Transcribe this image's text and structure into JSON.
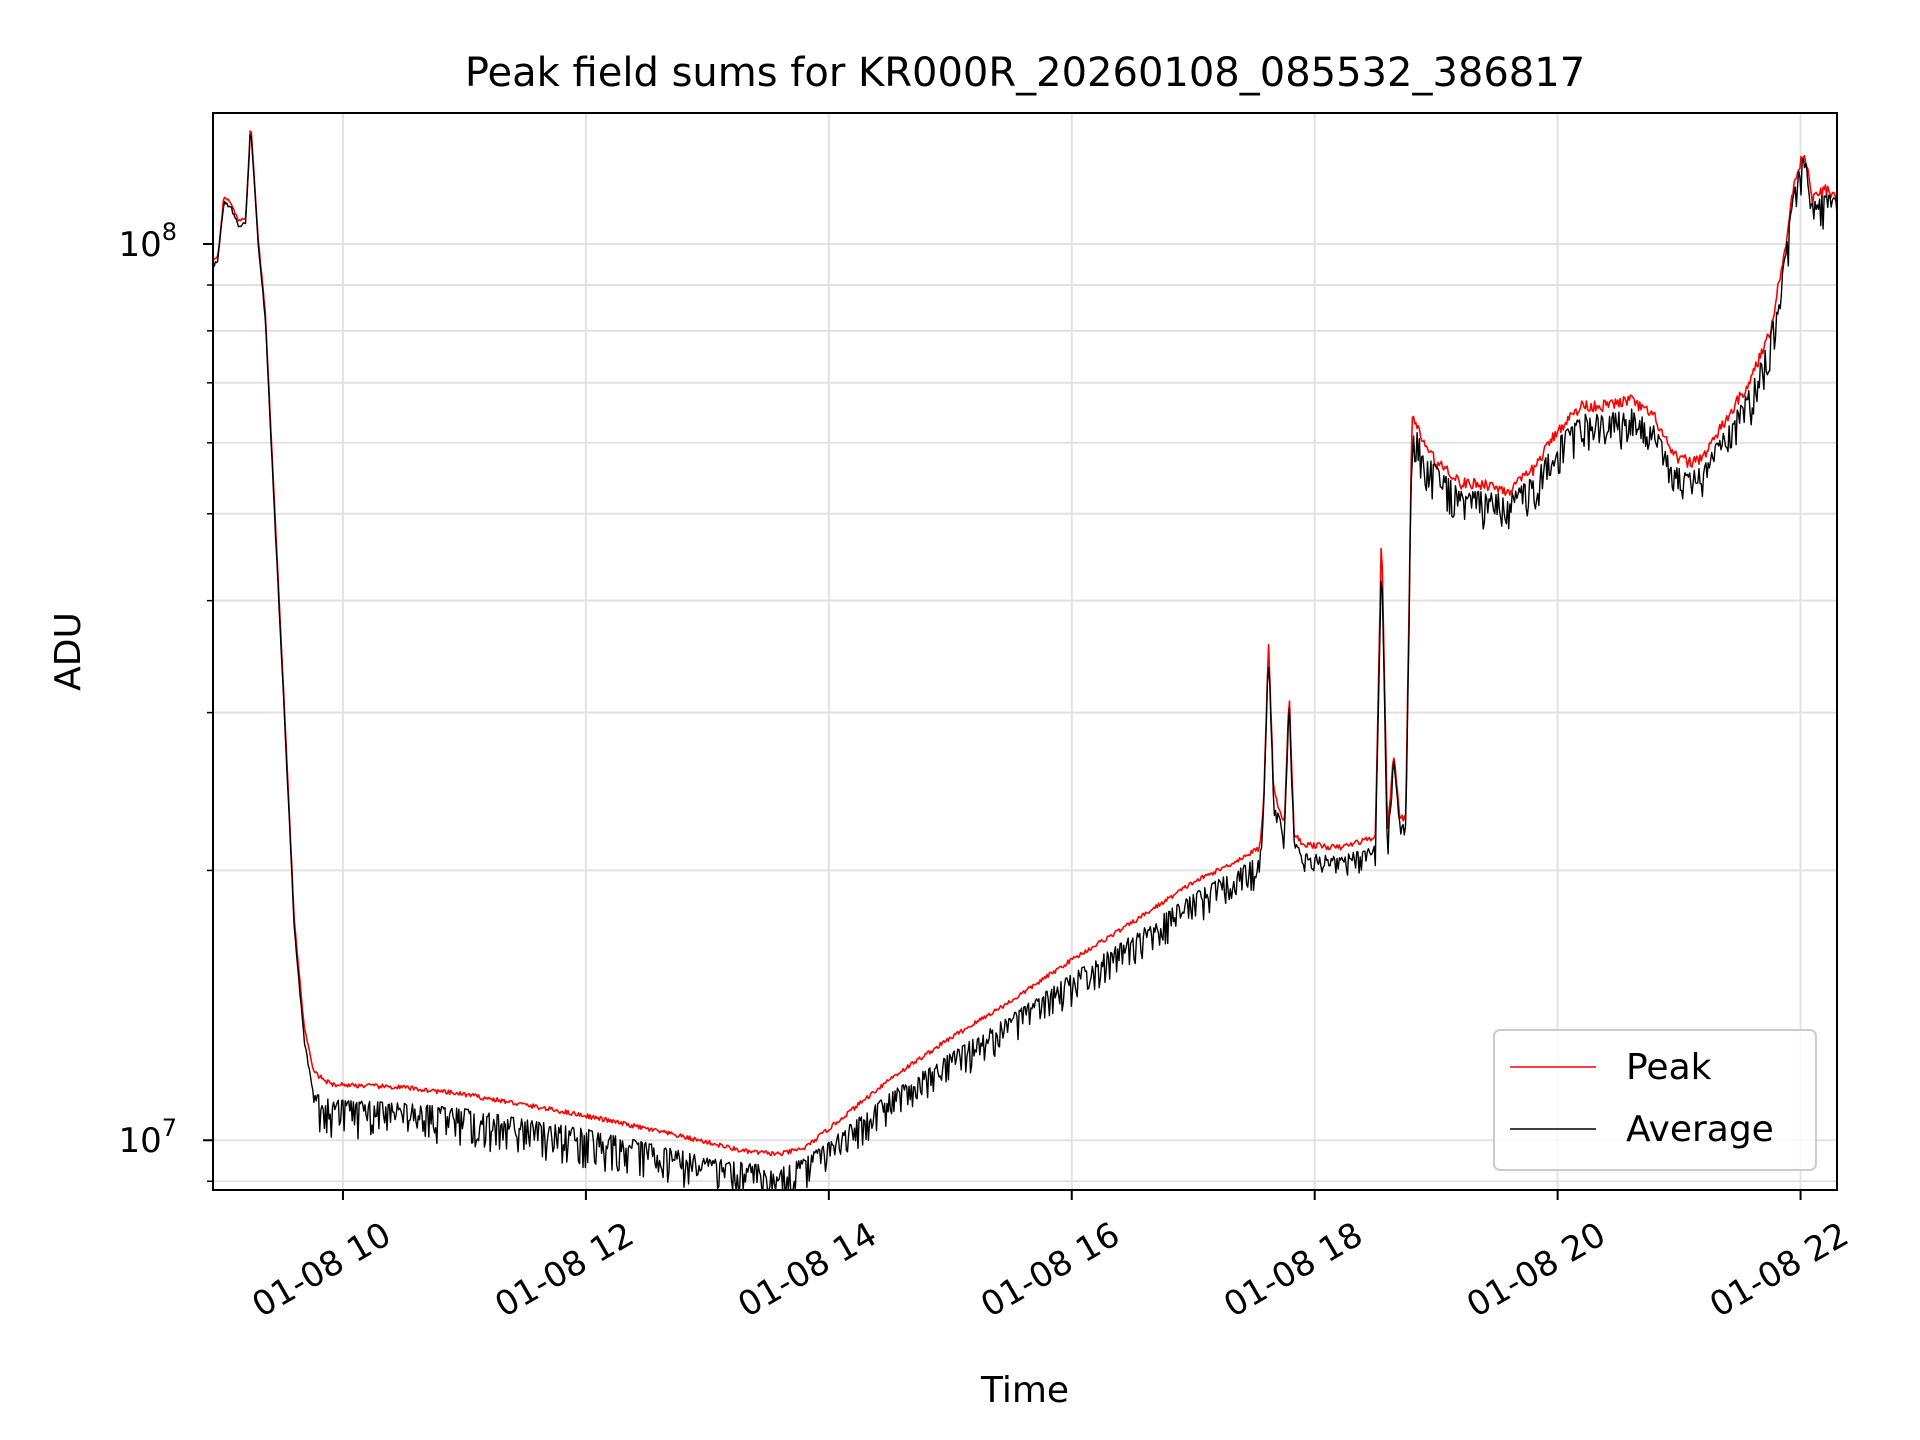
{
  "chart_data": {
    "type": "line",
    "title": "Peak field sums for KR000R_20260108_085532_386817",
    "xlabel": "Time",
    "ylabel": "ADU",
    "yscale": "log",
    "grid": true,
    "legend_placement": "lower-right",
    "x_domain_hours": [
      8.93,
      22.3
    ],
    "y_domain": [
      8800000,
      140000000
    ],
    "x_ticks": [
      {
        "hour": 10,
        "label": "01-08 10"
      },
      {
        "hour": 12,
        "label": "01-08 12"
      },
      {
        "hour": 14,
        "label": "01-08 14"
      },
      {
        "hour": 16,
        "label": "01-08 16"
      },
      {
        "hour": 18,
        "label": "01-08 18"
      },
      {
        "hour": 20,
        "label": "01-08 20"
      },
      {
        "hour": 22,
        "label": "01-08 22"
      }
    ],
    "y_major_ticks": [
      {
        "value": 10000000,
        "base": "10",
        "exp": "7"
      },
      {
        "value": 100000000,
        "base": "10",
        "exp": "8"
      }
    ],
    "y_minor_ticks": [
      9000000,
      20000000,
      30000000,
      40000000,
      50000000,
      60000000,
      70000000,
      80000000,
      90000000
    ],
    "series": [
      {
        "name": "Peak",
        "color": "#ff0000",
        "points": [
          [
            8.93,
            96000000
          ],
          [
            8.97,
            97000000
          ],
          [
            9.02,
            113000000
          ],
          [
            9.08,
            111000000
          ],
          [
            9.14,
            106000000
          ],
          [
            9.2,
            107000000
          ],
          [
            9.24,
            137000000
          ],
          [
            9.3,
            102000000
          ],
          [
            9.36,
            84000000
          ],
          [
            9.44,
            50000000
          ],
          [
            9.52,
            30000000
          ],
          [
            9.6,
            17500000
          ],
          [
            9.68,
            13400000
          ],
          [
            9.76,
            11900000
          ],
          [
            9.9,
            11550000
          ],
          [
            10.2,
            11500000
          ],
          [
            10.5,
            11450000
          ],
          [
            11.0,
            11250000
          ],
          [
            11.5,
            10950000
          ],
          [
            12.0,
            10650000
          ],
          [
            12.5,
            10300000
          ],
          [
            13.0,
            9950000
          ],
          [
            13.3,
            9720000
          ],
          [
            13.6,
            9650000
          ],
          [
            13.8,
            9800000
          ],
          [
            14.0,
            10300000
          ],
          [
            14.5,
            11700000
          ],
          [
            15.0,
            13000000
          ],
          [
            15.5,
            14300000
          ],
          [
            16.0,
            15900000
          ],
          [
            16.5,
            17500000
          ],
          [
            17.0,
            19400000
          ],
          [
            17.3,
            20300000
          ],
          [
            17.55,
            21200000
          ],
          [
            17.58,
            24000000
          ],
          [
            17.62,
            36000000
          ],
          [
            17.66,
            25000000
          ],
          [
            17.7,
            23500000
          ],
          [
            17.75,
            22500000
          ],
          [
            17.79,
            31500000
          ],
          [
            17.83,
            22000000
          ],
          [
            17.9,
            21400000
          ],
          [
            18.2,
            21200000
          ],
          [
            18.5,
            21800000
          ],
          [
            18.55,
            48000000
          ],
          [
            18.6,
            22000000
          ],
          [
            18.65,
            27000000
          ],
          [
            18.7,
            23000000
          ],
          [
            18.75,
            22800000
          ],
          [
            18.8,
            64000000
          ],
          [
            18.9,
            60000000
          ],
          [
            19.0,
            57000000
          ],
          [
            19.1,
            56000000
          ],
          [
            19.2,
            54000000
          ],
          [
            19.4,
            54000000
          ],
          [
            19.6,
            53000000
          ],
          [
            19.8,
            56000000
          ],
          [
            20.0,
            62000000
          ],
          [
            20.2,
            66000000
          ],
          [
            20.4,
            66000000
          ],
          [
            20.6,
            67000000
          ],
          [
            20.8,
            64000000
          ],
          [
            20.95,
            58000000
          ],
          [
            21.1,
            57000000
          ],
          [
            21.2,
            58000000
          ],
          [
            21.4,
            64000000
          ],
          [
            21.6,
            71000000
          ],
          [
            21.75,
            80000000
          ],
          [
            21.88,
            100000000
          ],
          [
            21.95,
            118000000
          ],
          [
            22.03,
            127000000
          ],
          [
            22.1,
            112000000
          ],
          [
            22.2,
            115000000
          ],
          [
            22.3,
            113000000
          ]
        ]
      },
      {
        "name": "Average",
        "color": "#000000",
        "points": [
          [
            8.93,
            95000000
          ],
          [
            8.97,
            96000000
          ],
          [
            9.02,
            112000000
          ],
          [
            9.08,
            110000000
          ],
          [
            9.14,
            105000000
          ],
          [
            9.2,
            106000000
          ],
          [
            9.24,
            136000000
          ],
          [
            9.3,
            101000000
          ],
          [
            9.36,
            83000000
          ],
          [
            9.44,
            49000000
          ],
          [
            9.52,
            29500000
          ],
          [
            9.6,
            17200000
          ],
          [
            9.68,
            13000000
          ],
          [
            9.76,
            11200000
          ],
          [
            9.9,
            11000000
          ],
          [
            10.2,
            10950000
          ],
          [
            10.5,
            10900000
          ],
          [
            11.0,
            10750000
          ],
          [
            11.5,
            10450000
          ],
          [
            12.0,
            10200000
          ],
          [
            12.5,
            9850000
          ],
          [
            13.0,
            9500000
          ],
          [
            13.3,
            9350000
          ],
          [
            13.6,
            9250000
          ],
          [
            13.8,
            9450000
          ],
          [
            14.0,
            9900000
          ],
          [
            14.5,
            11200000
          ],
          [
            15.0,
            12400000
          ],
          [
            15.5,
            13700000
          ],
          [
            16.0,
            15200000
          ],
          [
            16.5,
            16800000
          ],
          [
            17.0,
            18700000
          ],
          [
            17.3,
            19700000
          ],
          [
            17.55,
            20600000
          ],
          [
            17.58,
            23500000
          ],
          [
            17.62,
            35500000
          ],
          [
            17.66,
            24500000
          ],
          [
            17.7,
            23000000
          ],
          [
            17.75,
            22000000
          ],
          [
            17.79,
            31000000
          ],
          [
            17.83,
            21500000
          ],
          [
            17.9,
            20800000
          ],
          [
            18.2,
            20600000
          ],
          [
            18.5,
            21200000
          ],
          [
            18.55,
            46000000
          ],
          [
            18.6,
            21500000
          ],
          [
            18.65,
            26500000
          ],
          [
            18.7,
            22500000
          ],
          [
            18.75,
            22300000
          ],
          [
            18.8,
            63000000
          ],
          [
            18.9,
            58500000
          ],
          [
            19.0,
            56000000
          ],
          [
            19.1,
            54500000
          ],
          [
            19.2,
            52500000
          ],
          [
            19.4,
            52500000
          ],
          [
            19.6,
            52000000
          ],
          [
            19.8,
            54500000
          ],
          [
            20.0,
            60000000
          ],
          [
            20.2,
            64000000
          ],
          [
            20.4,
            64000000
          ],
          [
            20.6,
            65000000
          ],
          [
            20.8,
            62000000
          ],
          [
            20.95,
            56000000
          ],
          [
            21.1,
            55000000
          ],
          [
            21.2,
            56500000
          ],
          [
            21.4,
            62000000
          ],
          [
            21.6,
            69000000
          ],
          [
            21.75,
            78000000
          ],
          [
            21.88,
            98000000
          ],
          [
            21.95,
            116000000
          ],
          [
            22.03,
            125000000
          ],
          [
            22.1,
            110000000
          ],
          [
            22.2,
            113000000
          ],
          [
            22.3,
            111000000
          ]
        ]
      }
    ]
  }
}
